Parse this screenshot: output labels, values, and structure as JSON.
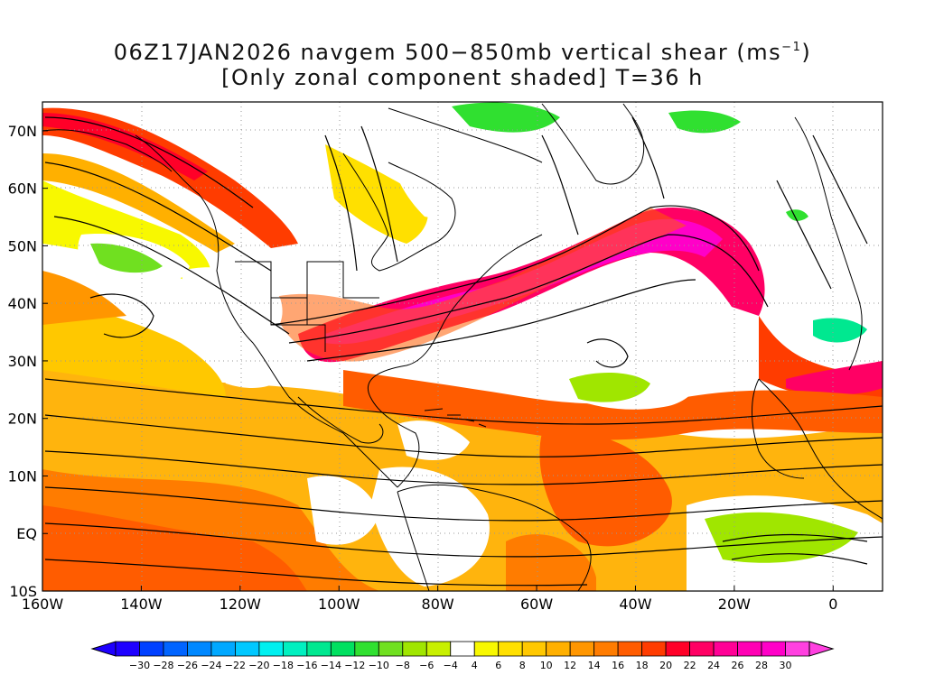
{
  "title": {
    "line1_prefix": "06Z17JAN2026 navgem 500−850mb vertical shear (ms",
    "line1_sup": "−1",
    "line1_suffix": ")",
    "line2": "[Only zonal component shaded] T=36 h"
  },
  "map": {
    "projection": "cylindrical equidistant",
    "lon_range": [
      -160,
      10
    ],
    "lat_range": [
      -10,
      75
    ],
    "grid": "dotted",
    "y_ticks": [
      {
        "lat": 70,
        "label": "70N"
      },
      {
        "lat": 60,
        "label": "60N"
      },
      {
        "lat": 50,
        "label": "50N"
      },
      {
        "lat": 40,
        "label": "40N"
      },
      {
        "lat": 30,
        "label": "30N"
      },
      {
        "lat": 20,
        "label": "20N"
      },
      {
        "lat": 10,
        "label": "10N"
      },
      {
        "lat": 0,
        "label": "EQ"
      },
      {
        "lat": -10,
        "label": "10S"
      }
    ],
    "x_ticks": [
      {
        "lon": -160,
        "label": "160W"
      },
      {
        "lon": -140,
        "label": "140W"
      },
      {
        "lon": -120,
        "label": "120W"
      },
      {
        "lon": -100,
        "label": "100W"
      },
      {
        "lon": -80,
        "label": "80W"
      },
      {
        "lon": -60,
        "label": "60W"
      },
      {
        "lon": -40,
        "label": "40W"
      },
      {
        "lon": -20,
        "label": "20W"
      },
      {
        "lon": 0,
        "label": "0"
      }
    ]
  },
  "colorbar": {
    "labels": [
      "−30",
      "−28",
      "−26",
      "−24",
      "−22",
      "−20",
      "−18",
      "−16",
      "−14",
      "−12",
      "−10",
      "−8",
      "−6",
      "−4",
      "4",
      "6",
      "8",
      "10",
      "12",
      "14",
      "16",
      "18",
      "20",
      "22",
      "24",
      "26",
      "28",
      "30"
    ],
    "colors": [
      "#1e00ff",
      "#0040ff",
      "#0064ff",
      "#0088ff",
      "#00a8ff",
      "#00c8ff",
      "#00f0f0",
      "#00f0c0",
      "#00e890",
      "#00e060",
      "#30e030",
      "#70e020",
      "#a0e600",
      "#c8f000",
      "#ffffff",
      "#f8f800",
      "#ffe000",
      "#ffc800",
      "#ffb000",
      "#ff9600",
      "#ff7c00",
      "#ff5c00",
      "#ff3c00",
      "#ff0028",
      "#ff0064",
      "#ff0096",
      "#ff00b4",
      "#ff00c8",
      "#ff40e0"
    ],
    "under_color": "#1e00ff",
    "over_color": "#ff40e0"
  },
  "overlays": {
    "shading": "zonal component of 500-850mb vertical shear",
    "streamlines": "shear vector streamlines",
    "coastlines": "continental outlines and political boundaries"
  }
}
